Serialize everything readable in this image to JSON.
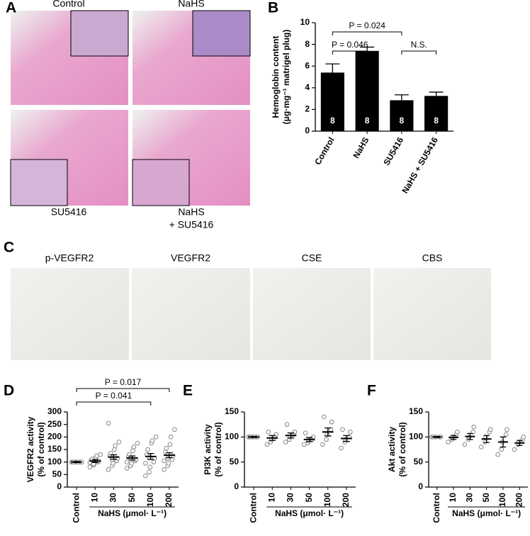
{
  "figure": {
    "panel_letters": [
      "A",
      "B",
      "C",
      "D",
      "E",
      "F"
    ],
    "a_labels": [
      [
        "Control"
      ],
      [
        "NaHS"
      ],
      [
        "SU5416"
      ],
      [
        "NaHS",
        "+ SU5416"
      ]
    ],
    "c_labels": [
      "p-VEGFR2",
      "VEGFR2",
      "CSE",
      "CBS"
    ]
  },
  "chart_data": [
    {
      "type": "bar",
      "ylabel": [
        "Hemoglobin content",
        "(μg·mg⁻¹ matrigel plug)"
      ],
      "categories": [
        "Control",
        "NaHS",
        "SU5416",
        "NaHS + SU5416"
      ],
      "values": [
        5.4,
        7.4,
        2.85,
        3.25
      ],
      "errors": [
        0.8,
        0.35,
        0.5,
        0.35
      ],
      "n": [
        8,
        8,
        8,
        8
      ],
      "color": "#000000",
      "ylim": [
        0,
        10
      ],
      "yticks": [
        0,
        2,
        4,
        6,
        8,
        10
      ],
      "annotations": [
        {
          "label": "P = 0.024",
          "categories": [
            "Control",
            "SU5416"
          ]
        },
        {
          "label": "P = 0.046",
          "categories": [
            "Control",
            "NaHS"
          ]
        },
        {
          "label": "N.S.",
          "categories": [
            "SU5416",
            "NaHS + SU5416"
          ]
        }
      ]
    },
    {
      "type": "dot",
      "ylabel": [
        "VEGFR2 activity",
        "(% of control)"
      ],
      "xlabel": "NaHS (μmol· L⁻¹)",
      "categories": [
        "Control",
        "10",
        "30",
        "50",
        "100",
        "200"
      ],
      "values": [
        100,
        104,
        120,
        116,
        122,
        127
      ],
      "errors": [
        2,
        6,
        9,
        8,
        12,
        10
      ],
      "points": [
        [
          100,
          100,
          100,
          100,
          100,
          100,
          100,
          100,
          100,
          100
        ],
        [
          80,
          88,
          95,
          100,
          104,
          108,
          112,
          118,
          125,
          130,
          98,
          92
        ],
        [
          70,
          85,
          95,
          105,
          115,
          125,
          135,
          150,
          165,
          180,
          255,
          110
        ],
        [
          75,
          85,
          95,
          105,
          110,
          120,
          130,
          145,
          160,
          175,
          100,
          115
        ],
        [
          45,
          60,
          80,
          100,
          115,
          130,
          150,
          175,
          185,
          200,
          95,
          120
        ],
        [
          70,
          85,
          95,
          110,
          125,
          140,
          155,
          170,
          200,
          230,
          105,
          115
        ]
      ],
      "ylim": [
        0,
        300
      ],
      "yticks": [
        0,
        50,
        100,
        150,
        200,
        250,
        300
      ],
      "annotations": [
        {
          "label": "P = 0.041",
          "categories": [
            "Control",
            "100"
          ]
        },
        {
          "label": "P = 0.017",
          "categories": [
            "Control",
            "200"
          ]
        }
      ]
    },
    {
      "type": "dot",
      "ylabel": [
        "PI3K activity",
        "(% of control)"
      ],
      "xlabel": "NaHS (μmol· L⁻¹)",
      "categories": [
        "Control",
        "10",
        "30",
        "50",
        "100",
        "200"
      ],
      "values": [
        100,
        98,
        103,
        95,
        110,
        97
      ],
      "errors": [
        1,
        5,
        5,
        4,
        8,
        6
      ],
      "points": [
        [
          100,
          100,
          100,
          100,
          100,
          100,
          100,
          100
        ],
        [
          85,
          90,
          95,
          100,
          105,
          110
        ],
        [
          90,
          95,
          100,
          105,
          110,
          125
        ],
        [
          85,
          88,
          92,
          95,
          100,
          108
        ],
        [
          85,
          95,
          105,
          115,
          130,
          140
        ],
        [
          78,
          90,
          95,
          100,
          110,
          115
        ]
      ],
      "ylim": [
        0,
        150
      ],
      "yticks": [
        0,
        50,
        100,
        150
      ]
    },
    {
      "type": "dot",
      "ylabel": [
        "Akt activity",
        "(% of control)"
      ],
      "xlabel": "NaHS (μmol· L⁻¹)",
      "categories": [
        "Control",
        "10",
        "30",
        "50",
        "100",
        "200"
      ],
      "values": [
        100,
        99,
        101,
        96,
        90,
        88
      ],
      "errors": [
        1,
        4,
        6,
        7,
        10,
        5
      ],
      "points": [
        [
          100,
          100,
          100,
          100,
          100,
          100
        ],
        [
          90,
          95,
          100,
          105,
          110
        ],
        [
          85,
          95,
          100,
          110,
          120
        ],
        [
          80,
          90,
          100,
          110,
          115
        ],
        [
          65,
          75,
          90,
          105,
          115
        ],
        [
          75,
          85,
          90,
          95,
          100
        ]
      ],
      "ylim": [
        0,
        150
      ],
      "yticks": [
        0,
        50,
        100,
        150
      ]
    }
  ]
}
